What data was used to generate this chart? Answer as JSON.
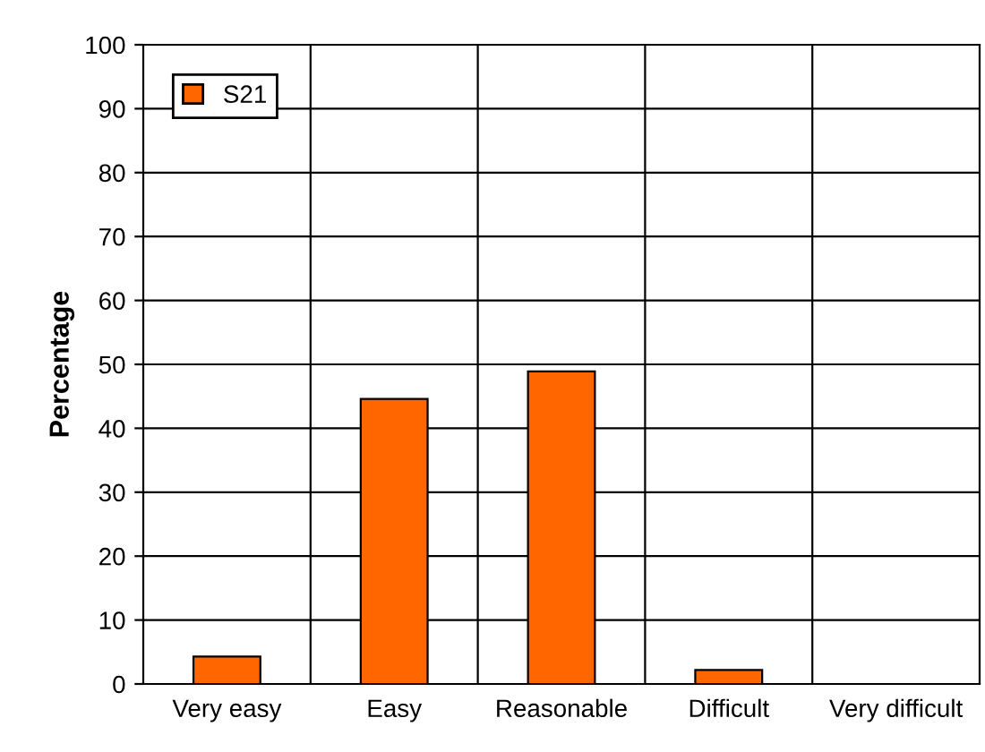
{
  "chart_data": {
    "type": "bar",
    "ylabel": "Percentage",
    "categories": [
      "Very easy",
      "Easy",
      "Reasonable",
      "Difficult",
      "Very difficult"
    ],
    "series": [
      {
        "name": "S21",
        "color": "#ff6600",
        "values": [
          4.3,
          44.6,
          48.9,
          2.2,
          0
        ]
      }
    ],
    "ylim": [
      0,
      100
    ],
    "yticks": [
      0,
      10,
      20,
      30,
      40,
      50,
      60,
      70,
      80,
      90,
      100
    ],
    "grid": true,
    "legend": "top left"
  }
}
